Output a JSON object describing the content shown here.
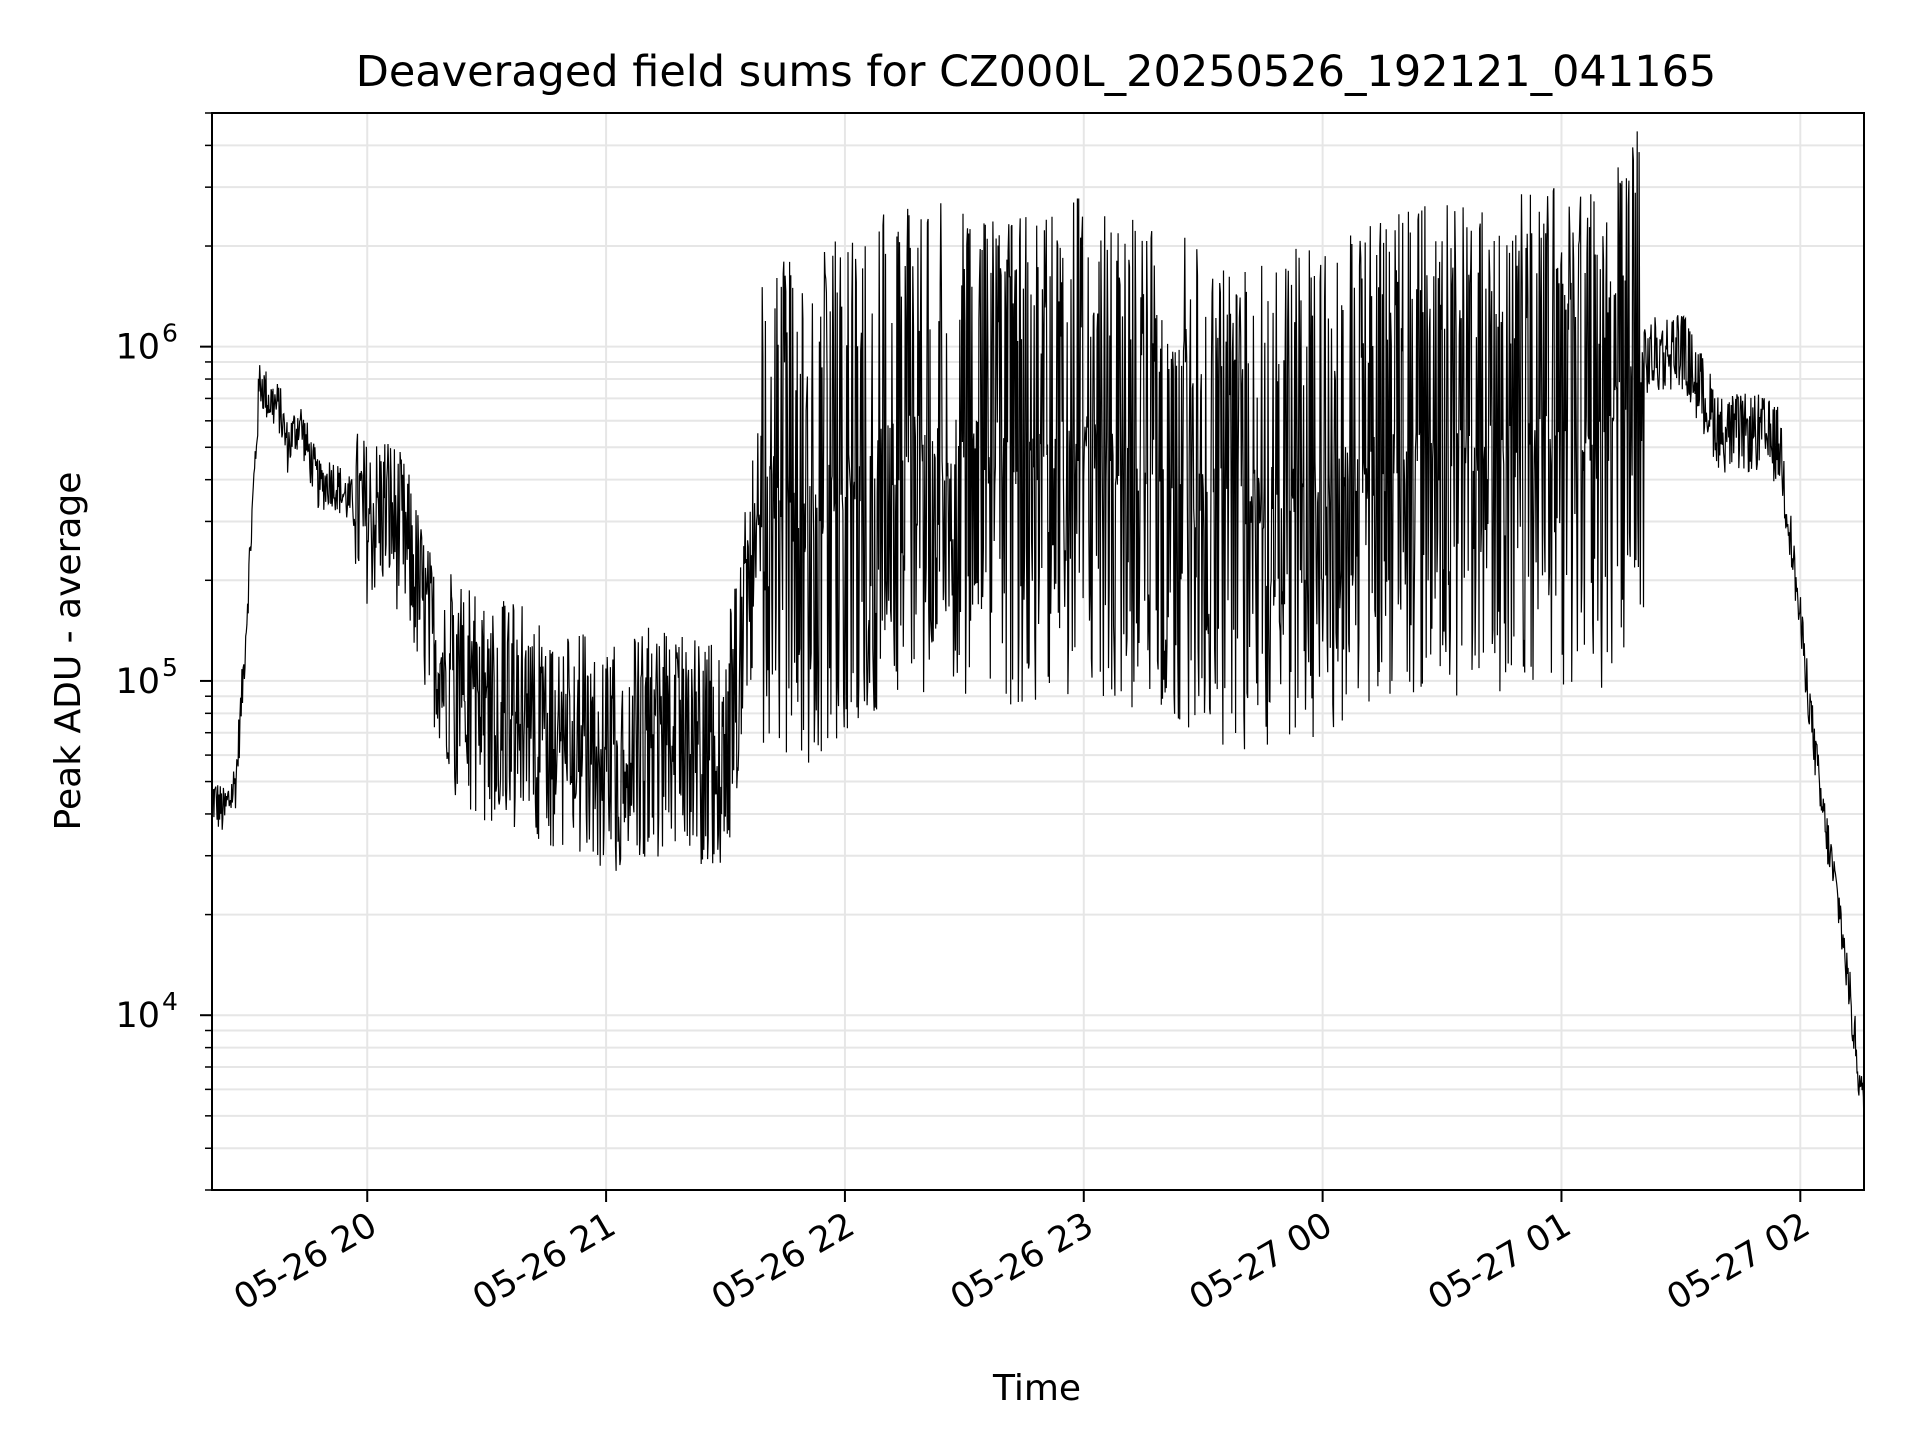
{
  "chart_data": {
    "type": "line",
    "title": "Deaveraged field sums for CZ000L_20250526_192121_041165",
    "xlabel": "Time",
    "ylabel": "Peak ADU - average",
    "x_scale": "time",
    "y_scale": "log",
    "xlim": [
      "2025-05-26 19:21",
      "2025-05-27 02:16"
    ],
    "ylim": [
      3000,
      5000000
    ],
    "grid": true,
    "x_ticks": [
      {
        "value": "2025-05-26 20:00",
        "label": "05-26 20"
      },
      {
        "value": "2025-05-26 21:00",
        "label": "05-26 21"
      },
      {
        "value": "2025-05-26 22:00",
        "label": "05-26 22"
      },
      {
        "value": "2025-05-26 23:00",
        "label": "05-26 23"
      },
      {
        "value": "2025-05-27 00:00",
        "label": "05-27 00"
      },
      {
        "value": "2025-05-27 01:00",
        "label": "05-27 01"
      },
      {
        "value": "2025-05-27 02:00",
        "label": "05-27 02"
      }
    ],
    "y_ticks": [
      {
        "value": 10000,
        "base": "10",
        "exp": "4"
      },
      {
        "value": 100000,
        "base": "10",
        "exp": "5"
      },
      {
        "value": 1000000,
        "base": "10",
        "exp": "6"
      }
    ],
    "line_color": "#000000",
    "series": [
      {
        "x": [
          "2025-05-26 19:21",
          "2025-05-26 19:24",
          "2025-05-26 19:27",
          "2025-05-26 19:29",
          "2025-05-26 19:31",
          "2025-05-26 19:33",
          "2025-05-26 19:35",
          "2025-05-26 19:38",
          "2025-05-26 19:40",
          "2025-05-26 19:43",
          "2025-05-26 19:46",
          "2025-05-26 19:48",
          "2025-05-26 19:51",
          "2025-05-26 19:55",
          "2025-05-26 20:00",
          "2025-05-26 20:05",
          "2025-05-26 20:10",
          "2025-05-26 20:15",
          "2025-05-26 20:20",
          "2025-05-26 20:25",
          "2025-05-26 20:30",
          "2025-05-26 20:35",
          "2025-05-26 20:40",
          "2025-05-26 20:45",
          "2025-05-26 20:50",
          "2025-05-26 20:55",
          "2025-05-26 21:00",
          "2025-05-26 21:10",
          "2025-05-26 21:20",
          "2025-05-26 21:30",
          "2025-05-26 21:40",
          "2025-05-26 21:50",
          "2025-05-26 22:00",
          "2025-05-26 22:15",
          "2025-05-26 22:30",
          "2025-05-26 22:45",
          "2025-05-26 23:00",
          "2025-05-26 23:15",
          "2025-05-26 23:30",
          "2025-05-26 23:45",
          "2025-05-27 00:00",
          "2025-05-27 00:15",
          "2025-05-27 00:30",
          "2025-05-27 00:45",
          "2025-05-27 01:00",
          "2025-05-27 01:10",
          "2025-05-27 01:20",
          "2025-05-27 01:30",
          "2025-05-27 01:40",
          "2025-05-27 01:50",
          "2025-05-27 01:55",
          "2025-05-27 02:00",
          "2025-05-27 02:05",
          "2025-05-27 02:10",
          "2025-05-27 02:16"
        ],
        "y": [
          45000,
          40000,
          50000,
          110000,
          300000,
          800000,
          700000,
          650000,
          500000,
          600000,
          450000,
          380000,
          400000,
          350000,
          300000,
          330000,
          250000,
          150000,
          100000,
          90000,
          85000,
          80000,
          75000,
          70000,
          65000,
          62000,
          55000,
          65000,
          62000,
          58000,
          400000,
          300000,
          400000,
          500000,
          500000,
          450000,
          500000,
          450000,
          350000,
          350000,
          380000,
          450000,
          500000,
          500000,
          550000,
          500000,
          900000,
          1000000,
          550000,
          550000,
          500000,
          150000,
          45000,
          20000,
          5000
        ]
      }
    ]
  }
}
